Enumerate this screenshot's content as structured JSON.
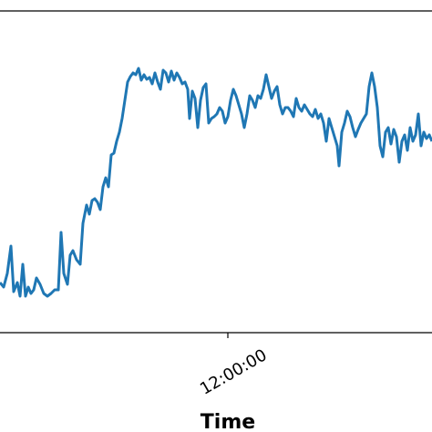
{
  "chart_data": {
    "type": "line",
    "x_label": "Time",
    "xlim": [
      470,
      944
    ],
    "xticks": [
      {
        "value": 720,
        "label": "12:00:00"
      }
    ],
    "ylim": [
      0,
      353
    ],
    "x": [
      470,
      474,
      478,
      482,
      485,
      489,
      492,
      495,
      498,
      501,
      504,
      507,
      510,
      514,
      518,
      522,
      526,
      530,
      534,
      537,
      540,
      544,
      547,
      550,
      554,
      558,
      561,
      565,
      568,
      571,
      574,
      577,
      580,
      583,
      586,
      589,
      592,
      595,
      598,
      601,
      604,
      607,
      610,
      613,
      616,
      619,
      622,
      625,
      628,
      631,
      634,
      637,
      640,
      643,
      646,
      649,
      652,
      655,
      658,
      661,
      664,
      667,
      670,
      673,
      676,
      678,
      681,
      684,
      687,
      690,
      693,
      696,
      699,
      702,
      705,
      708,
      711,
      714,
      717,
      720,
      723,
      726,
      729,
      732,
      735,
      738,
      741,
      744,
      747,
      750,
      753,
      756,
      759,
      762,
      765,
      768,
      771,
      774,
      777,
      780,
      783,
      786,
      789,
      792,
      795,
      798,
      801,
      804,
      807,
      810,
      813,
      816,
      819,
      822,
      825,
      828,
      831,
      834,
      837,
      840,
      842,
      845,
      848,
      851,
      854,
      857,
      860,
      863,
      866,
      869,
      872,
      875,
      878,
      881,
      884,
      887,
      890,
      893,
      896,
      899,
      902,
      905,
      908,
      911,
      914,
      917,
      920,
      923,
      926,
      929,
      932,
      935,
      938,
      941,
      944
    ],
    "series": [
      {
        "name": null,
        "color": "#1f77b4",
        "values": [
          55,
          50,
          65,
          95,
          45,
          55,
          40,
          75,
          40,
          50,
          43,
          47,
          60,
          53,
          43,
          40,
          43,
          47,
          47,
          110,
          65,
          53,
          85,
          90,
          80,
          75,
          120,
          140,
          130,
          145,
          147,
          143,
          135,
          160,
          170,
          160,
          195,
          197,
          210,
          220,
          235,
          255,
          275,
          281,
          285,
          283,
          290,
          277,
          283,
          278,
          280,
          273,
          285,
          275,
          267,
          288,
          285,
          275,
          287,
          277,
          285,
          280,
          273,
          275,
          267,
          235,
          265,
          257,
          225,
          255,
          269,
          273,
          230,
          235,
          237,
          240,
          247,
          243,
          230,
          237,
          255,
          267,
          260,
          250,
          240,
          225,
          240,
          260,
          255,
          247,
          260,
          257,
          267,
          283,
          270,
          257,
          265,
          270,
          250,
          240,
          247,
          247,
          243,
          237,
          257,
          247,
          243,
          250,
          245,
          240,
          237,
          245,
          235,
          240,
          230,
          210,
          235,
          225,
          215,
          205,
          183,
          220,
          230,
          243,
          237,
          225,
          215,
          223,
          230,
          235,
          240,
          270,
          285,
          270,
          247,
          205,
          193,
          220,
          225,
          207,
          223,
          215,
          187,
          210,
          217,
          200,
          225,
          210,
          217,
          240,
          205,
          220,
          213,
          217,
          210
        ]
      }
    ]
  }
}
